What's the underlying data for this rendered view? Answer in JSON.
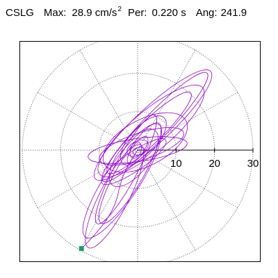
{
  "header": {
    "station": "CSLG",
    "max_label": "Max:",
    "max_value": "28.9 cm/s",
    "max_unit_exponent": "2",
    "period_label": "Per:",
    "period_value": "0.220 s",
    "angle_label": "Ang:",
    "angle_value": "241.9"
  },
  "colors": {
    "trace": "#9400d3",
    "end_marker": "#1a9a6c",
    "grid": "#555555"
  },
  "chart_data": {
    "type": "polar-orbit",
    "title": "",
    "radial_range": [
      0,
      30
    ],
    "ring_values": [
      10,
      20,
      30
    ],
    "spoke_step_deg": 30,
    "radial_tick_labels": [
      "10",
      "20",
      "30"
    ],
    "grid": "dotted",
    "end_point": {
      "x": -14.6,
      "y": -25.6
    },
    "loops": [
      {
        "cx": 4.0,
        "cy": 6.5,
        "a": 20.5,
        "b": 4.6,
        "rot": 43
      },
      {
        "cx": 4.5,
        "cy": 6.0,
        "a": 19.5,
        "b": 3.4,
        "rot": 46
      },
      {
        "cx": 3.5,
        "cy": 5.0,
        "a": 17.5,
        "b": 5.2,
        "rot": 40
      },
      {
        "cx": 3.0,
        "cy": 4.5,
        "a": 15.0,
        "b": 3.0,
        "rot": 44
      },
      {
        "cx": 2.0,
        "cy": 2.0,
        "a": 12.0,
        "b": 6.0,
        "rot": 28
      },
      {
        "cx": 1.0,
        "cy": 1.0,
        "a": 11.5,
        "b": 3.5,
        "rot": 18
      },
      {
        "cx": 0.0,
        "cy": 0.0,
        "a": 13.0,
        "b": 3.0,
        "rot": 8
      },
      {
        "cx": -1.0,
        "cy": -2.0,
        "a": 9.0,
        "b": 4.0,
        "rot": 52
      },
      {
        "cx": -2.0,
        "cy": -6.0,
        "a": 15.0,
        "b": 3.5,
        "rot": 60
      },
      {
        "cx": -4.0,
        "cy": -8.0,
        "a": 17.5,
        "b": 4.5,
        "rot": 57
      },
      {
        "cx": -3.0,
        "cy": -5.0,
        "a": 16.0,
        "b": 3.0,
        "rot": 62
      },
      {
        "cx": -6.0,
        "cy": -12.0,
        "a": 15.0,
        "b": 3.8,
        "rot": 63
      },
      {
        "cx": -1.0,
        "cy": -3.0,
        "a": 10.0,
        "b": 2.5,
        "rot": 34
      },
      {
        "cx": 1.5,
        "cy": 2.5,
        "a": 8.0,
        "b": 3.5,
        "rot": 48
      },
      {
        "cx": 0.0,
        "cy": 0.5,
        "a": 3.0,
        "b": 1.8,
        "rot": 30
      },
      {
        "cx": -0.5,
        "cy": 0.0,
        "a": 2.2,
        "b": 1.4,
        "rot": 70
      },
      {
        "cx": 0.3,
        "cy": -0.3,
        "a": 1.6,
        "b": 1.0,
        "rot": 10
      },
      {
        "cx": 0.0,
        "cy": 0.0,
        "a": 4.2,
        "b": 1.5,
        "rot": 55
      }
    ]
  }
}
